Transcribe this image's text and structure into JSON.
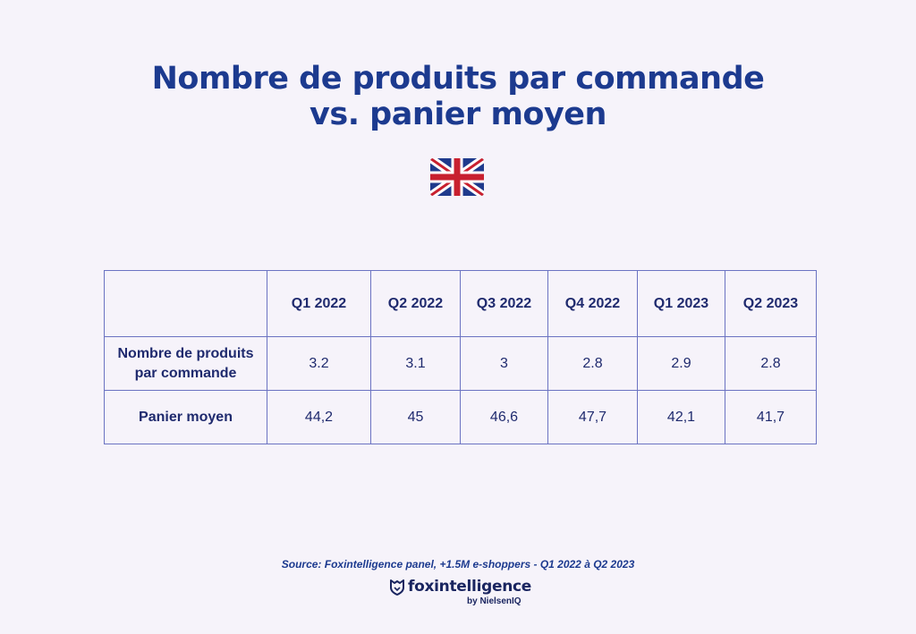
{
  "title": {
    "line1": "Nombre de produits par commande",
    "line2": "vs. panier moyen"
  },
  "flag": {
    "icon": "uk-flag-icon"
  },
  "chart_data": {
    "type": "table",
    "columns": [
      "",
      "Q1 2022",
      "Q2 2022",
      "Q3 2022",
      "Q4 2022",
      "Q1 2023",
      "Q2 2023"
    ],
    "rows": [
      {
        "label_line1": "Nombre de produits",
        "label_line2": "par commande",
        "values": [
          "3.2",
          "3.1",
          "3",
          "2.8",
          "2.9",
          "2.8"
        ]
      },
      {
        "label_line1": "Panier moyen",
        "label_line2": "",
        "values": [
          "44,2",
          "45",
          "46,6",
          "47,7",
          "42,1",
          "41,7"
        ]
      }
    ]
  },
  "source": "Source: Foxintelligence panel, +1.5M e-shoppers - Q1 2022 à Q2 2023",
  "logo": {
    "name": "foxintelligence",
    "sub": "by NielsenIQ",
    "icon": "fox-shield-icon"
  },
  "colors": {
    "title": "#1c3a8f",
    "text": "#1f2a6e",
    "border": "#6b73c2",
    "background": "#f6f3fa"
  }
}
